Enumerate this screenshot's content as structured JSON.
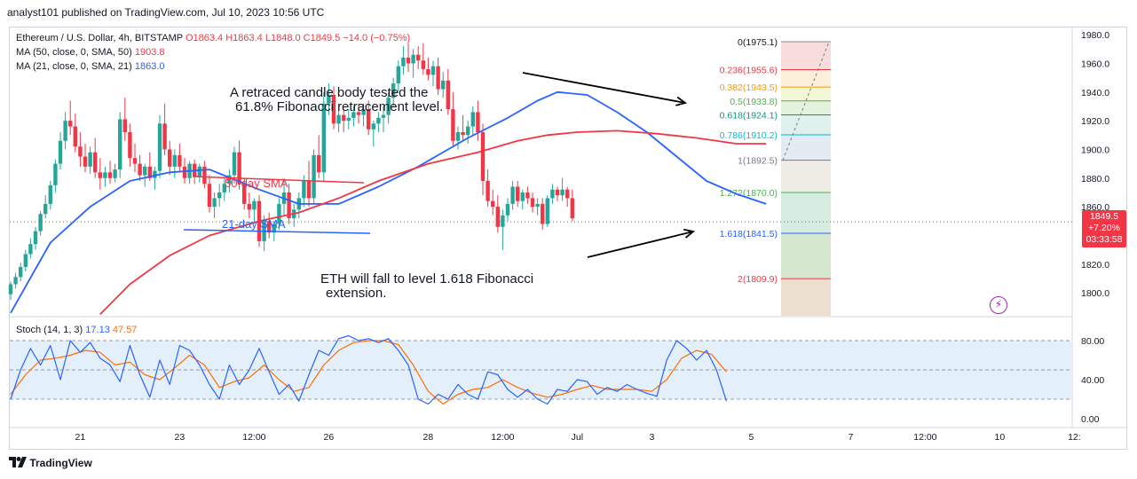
{
  "header": {
    "publisher": "analyst101 published on TradingView.com, Jul 10, 2023 10:56 UTC"
  },
  "legend": {
    "title": "Ethereum / U.S. Dollar, 4h, BITSTAMP",
    "ohlc": "O1863.4  H1863.4  L1848.0  C1849.5  −14.0 (−0.75%)",
    "ma50_label": "MA (50, close, 0, SMA, 50)",
    "ma50_value": "1903.8",
    "ma21_label": "MA (21, close, 0, SMA, 21)",
    "ma21_value": "1863.0"
  },
  "stoch": {
    "label": "Stoch (14, 1, 3)",
    "k_value": "17.13",
    "d_value": "47.57"
  },
  "price_tag": {
    "price": "1849.5",
    "change": "+7.20%",
    "countdown": "03:33:58"
  },
  "annotations": {
    "candle_note_line1": "A retraced candle body tested the",
    "candle_note_line2": "61.8% Fibonacci retracement level.",
    "fall_note_line1": "ETH will fall to level 1.618 Fibonacci",
    "fall_note_line2": "extension.",
    "ma50_label": "50-day SMA",
    "ma21_label": "21-day SMA"
  },
  "footer": {
    "brand": "TradingView"
  },
  "colors": {
    "up": "#26a69a",
    "down": "#f23645",
    "ma21": "#2962ff",
    "ma50": "#f23645",
    "stoch_k": "#2962ff",
    "stoch_d": "#ff6d00",
    "stoch_band": "#e3f0fb"
  },
  "icons": {
    "alert": "lightning-bolt-icon",
    "logo": "tradingview-logo-icon"
  },
  "chart_data": {
    "type": "candlestick",
    "title": "Ethereum / U.S. Dollar, 4h, BITSTAMP",
    "y_ticks": [
      1800,
      1820,
      1840,
      1860,
      1880,
      1900,
      1920,
      1940,
      1960,
      1980
    ],
    "y_tick_labels": [
      "1800.0",
      "1820.0",
      "1840.0",
      "1860.0",
      "1880.0",
      "1900.0",
      "1920.0",
      "1940.0",
      "1960.0",
      "1980.0"
    ],
    "ylim": [
      1784,
      1985
    ],
    "x_tick_labels": [
      "21",
      "23",
      "12:00",
      "26",
      "28",
      "12:00",
      "Jul",
      "3",
      "5",
      "7",
      "12:00",
      "10",
      "12:"
    ],
    "x_ticks_index": [
      14,
      34,
      49,
      64,
      84,
      99,
      114,
      129,
      149,
      169,
      184,
      199,
      214
    ],
    "last_price": 1849.5,
    "fibonacci": {
      "levels": [
        {
          "ratio": "0",
          "price": 1975.1
        },
        {
          "ratio": "0.236",
          "price": 1955.6
        },
        {
          "ratio": "0.382",
          "price": 1943.5
        },
        {
          "ratio": "0.5",
          "price": 1933.8
        },
        {
          "ratio": "0.618",
          "price": 1924.1
        },
        {
          "ratio": "0.786",
          "price": 1910.2
        },
        {
          "ratio": "1",
          "price": 1892.5
        },
        {
          "ratio": "1.272",
          "price": 1870.0
        },
        {
          "ratio": "1.618",
          "price": 1841.5
        },
        {
          "ratio": "2",
          "price": 1809.9
        }
      ]
    },
    "candles": [
      [
        1799,
        1808,
        1795,
        1806
      ],
      [
        1806,
        1814,
        1803,
        1811
      ],
      [
        1811,
        1821,
        1808,
        1818
      ],
      [
        1818,
        1830,
        1815,
        1827
      ],
      [
        1827,
        1838,
        1824,
        1834
      ],
      [
        1834,
        1846,
        1830,
        1843
      ],
      [
        1843,
        1857,
        1840,
        1855
      ],
      [
        1855,
        1868,
        1852,
        1862
      ],
      [
        1862,
        1878,
        1858,
        1875
      ],
      [
        1875,
        1893,
        1870,
        1890
      ],
      [
        1890,
        1912,
        1886,
        1906
      ],
      [
        1906,
        1926,
        1900,
        1920
      ],
      [
        1920,
        1934,
        1910,
        1916
      ],
      [
        1916,
        1925,
        1898,
        1902
      ],
      [
        1902,
        1912,
        1888,
        1895
      ],
      [
        1895,
        1904,
        1884,
        1888
      ],
      [
        1888,
        1902,
        1883,
        1898
      ],
      [
        1898,
        1908,
        1880,
        1884
      ],
      [
        1884,
        1894,
        1872,
        1880
      ],
      [
        1880,
        1888,
        1874,
        1884
      ],
      [
        1884,
        1892,
        1876,
        1880
      ],
      [
        1880,
        1890,
        1877,
        1886
      ],
      [
        1886,
        1926,
        1880,
        1921
      ],
      [
        1921,
        1936,
        1906,
        1912
      ],
      [
        1912,
        1918,
        1888,
        1894
      ],
      [
        1894,
        1904,
        1884,
        1890
      ],
      [
        1890,
        1896,
        1878,
        1882
      ],
      [
        1882,
        1890,
        1874,
        1888
      ],
      [
        1888,
        1898,
        1878,
        1880
      ],
      [
        1880,
        1888,
        1872,
        1885
      ],
      [
        1885,
        1924,
        1880,
        1918
      ],
      [
        1918,
        1932,
        1896,
        1900
      ],
      [
        1900,
        1906,
        1882,
        1888
      ],
      [
        1888,
        1900,
        1880,
        1896
      ],
      [
        1896,
        1904,
        1884,
        1888
      ],
      [
        1888,
        1894,
        1876,
        1880
      ],
      [
        1880,
        1892,
        1876,
        1890
      ],
      [
        1890,
        1893,
        1876,
        1881
      ],
      [
        1881,
        1890,
        1877,
        1888
      ],
      [
        1888,
        1892,
        1873,
        1876
      ],
      [
        1876,
        1882,
        1856,
        1860
      ],
      [
        1860,
        1870,
        1852,
        1866
      ],
      [
        1866,
        1876,
        1860,
        1870
      ],
      [
        1870,
        1880,
        1864,
        1876
      ],
      [
        1876,
        1886,
        1870,
        1882
      ],
      [
        1882,
        1902,
        1876,
        1898
      ],
      [
        1898,
        1906,
        1872,
        1876
      ],
      [
        1876,
        1880,
        1858,
        1862
      ],
      [
        1862,
        1870,
        1852,
        1858
      ],
      [
        1858,
        1866,
        1848,
        1864
      ],
      [
        1864,
        1868,
        1832,
        1836
      ],
      [
        1836,
        1854,
        1829,
        1850
      ],
      [
        1850,
        1856,
        1838,
        1842
      ],
      [
        1842,
        1850,
        1836,
        1848
      ],
      [
        1848,
        1866,
        1844,
        1862
      ],
      [
        1862,
        1880,
        1854,
        1870
      ],
      [
        1870,
        1876,
        1848,
        1852
      ],
      [
        1852,
        1862,
        1846,
        1858
      ],
      [
        1858,
        1870,
        1852,
        1866
      ],
      [
        1866,
        1882,
        1860,
        1878
      ],
      [
        1878,
        1892,
        1860,
        1866
      ],
      [
        1866,
        1900,
        1862,
        1896
      ],
      [
        1896,
        1910,
        1880,
        1884
      ],
      [
        1884,
        1940,
        1878,
        1932
      ],
      [
        1932,
        1946,
        1924,
        1938
      ],
      [
        1938,
        1944,
        1914,
        1918
      ],
      [
        1918,
        1930,
        1912,
        1924
      ],
      [
        1924,
        1928,
        1912,
        1920
      ],
      [
        1920,
        1928,
        1914,
        1922
      ],
      [
        1922,
        1930,
        1916,
        1926
      ],
      [
        1926,
        1932,
        1918,
        1924
      ],
      [
        1924,
        1932,
        1916,
        1928
      ],
      [
        1928,
        1934,
        1910,
        1914
      ],
      [
        1914,
        1920,
        1902,
        1918
      ],
      [
        1918,
        1926,
        1912,
        1922
      ],
      [
        1922,
        1930,
        1912,
        1924
      ],
      [
        1924,
        1940,
        1918,
        1936
      ],
      [
        1936,
        1950,
        1930,
        1946
      ],
      [
        1946,
        1962,
        1940,
        1958
      ],
      [
        1958,
        1972,
        1952,
        1964
      ],
      [
        1964,
        1974,
        1954,
        1960
      ],
      [
        1960,
        1970,
        1950,
        1966
      ],
      [
        1966,
        1972,
        1956,
        1962
      ],
      [
        1962,
        1974,
        1952,
        1956
      ],
      [
        1956,
        1964,
        1948,
        1952
      ],
      [
        1952,
        1962,
        1944,
        1958
      ],
      [
        1958,
        1964,
        1938,
        1942
      ],
      [
        1942,
        1954,
        1936,
        1948
      ],
      [
        1948,
        1956,
        1924,
        1928
      ],
      [
        1928,
        1940,
        1902,
        1906
      ],
      [
        1906,
        1916,
        1900,
        1912
      ],
      [
        1912,
        1924,
        1906,
        1910
      ],
      [
        1910,
        1920,
        1904,
        1916
      ],
      [
        1916,
        1930,
        1910,
        1926
      ],
      [
        1926,
        1934,
        1906,
        1912
      ],
      [
        1912,
        1918,
        1868,
        1878
      ],
      [
        1878,
        1886,
        1860,
        1864
      ],
      [
        1864,
        1872,
        1854,
        1860
      ],
      [
        1860,
        1868,
        1842,
        1846
      ],
      [
        1846,
        1858,
        1830,
        1854
      ],
      [
        1854,
        1866,
        1850,
        1862
      ],
      [
        1862,
        1878,
        1858,
        1874
      ],
      [
        1874,
        1878,
        1860,
        1864
      ],
      [
        1864,
        1872,
        1858,
        1870
      ],
      [
        1870,
        1874,
        1862,
        1866
      ],
      [
        1866,
        1870,
        1856,
        1860
      ],
      [
        1860,
        1866,
        1854,
        1862
      ],
      [
        1862,
        1866,
        1844,
        1848
      ],
      [
        1848,
        1868,
        1846,
        1866
      ],
      [
        1866,
        1876,
        1862,
        1872
      ],
      [
        1872,
        1874,
        1864,
        1868
      ],
      [
        1868,
        1880,
        1864,
        1872
      ],
      [
        1872,
        1874,
        1860,
        1866
      ],
      [
        1866,
        1872,
        1850,
        1852
      ]
    ],
    "ma21": [
      [
        0,
        1786
      ],
      [
        8,
        1835
      ],
      [
        16,
        1860
      ],
      [
        24,
        1878
      ],
      [
        32,
        1884
      ],
      [
        40,
        1886
      ],
      [
        50,
        1872
      ],
      [
        58,
        1862
      ],
      [
        66,
        1862
      ],
      [
        74,
        1874
      ],
      [
        82,
        1888
      ],
      [
        92,
        1908
      ],
      [
        100,
        1922
      ],
      [
        106,
        1934
      ],
      [
        110,
        1940
      ],
      [
        116,
        1938
      ],
      [
        122,
        1926
      ],
      [
        128,
        1912
      ],
      [
        134,
        1895
      ],
      [
        140,
        1878
      ],
      [
        146,
        1869
      ],
      [
        152,
        1862
      ]
    ],
    "ma50": [
      [
        18,
        1785
      ],
      [
        24,
        1806
      ],
      [
        32,
        1826
      ],
      [
        40,
        1840
      ],
      [
        50,
        1850
      ],
      [
        58,
        1856
      ],
      [
        66,
        1866
      ],
      [
        74,
        1878
      ],
      [
        84,
        1890
      ],
      [
        94,
        1898
      ],
      [
        102,
        1906
      ],
      [
        108,
        1910
      ],
      [
        114,
        1912
      ],
      [
        122,
        1913
      ],
      [
        130,
        1911
      ],
      [
        138,
        1908
      ],
      [
        146,
        1904
      ],
      [
        152,
        1904
      ]
    ],
    "stoch_k": [
      [
        0,
        20
      ],
      [
        2,
        50
      ],
      [
        4,
        72
      ],
      [
        6,
        55
      ],
      [
        8,
        75
      ],
      [
        10,
        40
      ],
      [
        12,
        80
      ],
      [
        14,
        68
      ],
      [
        16,
        78
      ],
      [
        18,
        62
      ],
      [
        20,
        55
      ],
      [
        22,
        38
      ],
      [
        24,
        75
      ],
      [
        26,
        45
      ],
      [
        28,
        22
      ],
      [
        30,
        60
      ],
      [
        32,
        35
      ],
      [
        34,
        75
      ],
      [
        36,
        70
      ],
      [
        38,
        55
      ],
      [
        40,
        35
      ],
      [
        42,
        20
      ],
      [
        44,
        55
      ],
      [
        46,
        35
      ],
      [
        48,
        50
      ],
      [
        50,
        72
      ],
      [
        52,
        48
      ],
      [
        54,
        25
      ],
      [
        56,
        35
      ],
      [
        58,
        18
      ],
      [
        60,
        45
      ],
      [
        62,
        70
      ],
      [
        64,
        65
      ],
      [
        66,
        82
      ],
      [
        68,
        85
      ],
      [
        70,
        80
      ],
      [
        72,
        82
      ],
      [
        74,
        78
      ],
      [
        76,
        82
      ],
      [
        78,
        70
      ],
      [
        80,
        55
      ],
      [
        82,
        20
      ],
      [
        84,
        15
      ],
      [
        86,
        25
      ],
      [
        88,
        20
      ],
      [
        90,
        35
      ],
      [
        92,
        25
      ],
      [
        94,
        20
      ],
      [
        96,
        48
      ],
      [
        98,
        45
      ],
      [
        100,
        30
      ],
      [
        102,
        22
      ],
      [
        104,
        30
      ],
      [
        106,
        20
      ],
      [
        108,
        15
      ],
      [
        110,
        30
      ],
      [
        112,
        28
      ],
      [
        114,
        40
      ],
      [
        116,
        38
      ],
      [
        118,
        25
      ],
      [
        120,
        32
      ],
      [
        122,
        28
      ],
      [
        124,
        35
      ],
      [
        126,
        30
      ],
      [
        128,
        26
      ],
      [
        130,
        23
      ],
      [
        132,
        60
      ],
      [
        134,
        80
      ],
      [
        136,
        72
      ],
      [
        138,
        60
      ],
      [
        140,
        70
      ],
      [
        142,
        50
      ],
      [
        144,
        18
      ]
    ],
    "stoch_d": [
      [
        0,
        25
      ],
      [
        3,
        45
      ],
      [
        6,
        60
      ],
      [
        9,
        62
      ],
      [
        12,
        65
      ],
      [
        15,
        70
      ],
      [
        18,
        68
      ],
      [
        21,
        55
      ],
      [
        24,
        58
      ],
      [
        27,
        45
      ],
      [
        30,
        40
      ],
      [
        33,
        52
      ],
      [
        36,
        65
      ],
      [
        39,
        55
      ],
      [
        42,
        32
      ],
      [
        45,
        38
      ],
      [
        48,
        42
      ],
      [
        51,
        55
      ],
      [
        54,
        40
      ],
      [
        57,
        28
      ],
      [
        60,
        32
      ],
      [
        63,
        55
      ],
      [
        66,
        70
      ],
      [
        69,
        78
      ],
      [
        72,
        80
      ],
      [
        75,
        80
      ],
      [
        78,
        76
      ],
      [
        81,
        55
      ],
      [
        84,
        28
      ],
      [
        87,
        15
      ],
      [
        90,
        25
      ],
      [
        93,
        30
      ],
      [
        96,
        32
      ],
      [
        99,
        40
      ],
      [
        102,
        32
      ],
      [
        105,
        26
      ],
      [
        108,
        22
      ],
      [
        111,
        25
      ],
      [
        114,
        30
      ],
      [
        117,
        34
      ],
      [
        120,
        30
      ],
      [
        123,
        30
      ],
      [
        126,
        30
      ],
      [
        129,
        28
      ],
      [
        132,
        40
      ],
      [
        135,
        62
      ],
      [
        138,
        70
      ],
      [
        141,
        66
      ],
      [
        144,
        48
      ]
    ],
    "stoch_y_ticks": [
      0,
      40,
      80
    ],
    "stoch_y_tick_labels": [
      "0.00",
      "40.00",
      "80.00"
    ],
    "stoch_levels": [
      20,
      50,
      80
    ]
  }
}
